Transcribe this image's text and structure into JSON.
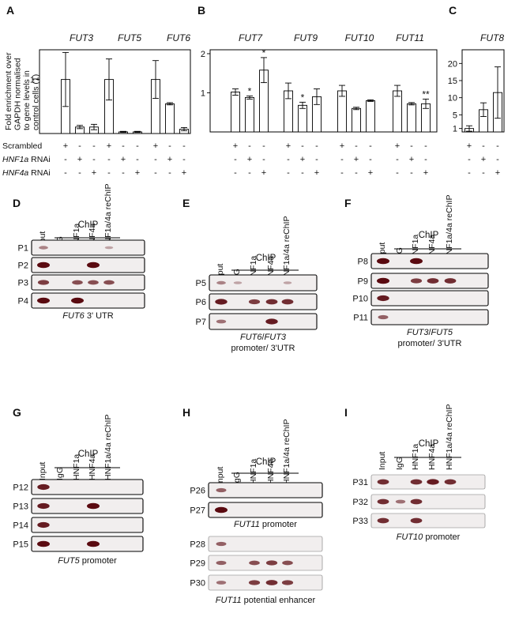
{
  "panel_letters": [
    "A",
    "B",
    "C",
    "D",
    "E",
    "F",
    "G",
    "H",
    "I"
  ],
  "y_axis_label": [
    "Fold enrichment over",
    "GAPDH normalised",
    "to gene levels in",
    "control cells (1)"
  ],
  "conditions": [
    "Scrambled",
    "HNF1a RNAi",
    "HNF4a RNAi"
  ],
  "sign_pattern": [
    [
      "+",
      "-",
      "-"
    ],
    [
      "-",
      "+",
      "-"
    ],
    [
      "-",
      "-",
      "+"
    ]
  ],
  "chart_data": [
    {
      "panel": "A",
      "type": "bar",
      "ylabel": "Fold enrichment over GAPDH normalised to gene levels in control cells (1)",
      "yticks": [
        "1"
      ],
      "ylim": [
        0,
        1.55
      ],
      "series": [
        {
          "name": "FUT3",
          "values": [
            1.0,
            0.12,
            0.12
          ],
          "errors": [
            0.5,
            0.03,
            0.05
          ]
        },
        {
          "name": "FUT5",
          "values": [
            1.0,
            0.03,
            0.03
          ],
          "errors": [
            0.38,
            0.01,
            0.01
          ]
        },
        {
          "name": "FUT6",
          "values": [
            1.0,
            0.55,
            0.08
          ],
          "errors": [
            0.35,
            0.02,
            0.03
          ]
        }
      ]
    },
    {
      "panel": "B",
      "type": "bar",
      "yticks": [
        "1",
        "2"
      ],
      "ylim": [
        0,
        2.1
      ],
      "series": [
        {
          "name": "FUT7",
          "values": [
            1.02,
            0.88,
            1.58
          ],
          "errors": [
            0.08,
            0.04,
            0.32
          ],
          "marks": [
            "",
            "*",
            "*"
          ]
        },
        {
          "name": "FUT9",
          "values": [
            1.05,
            0.68,
            0.9
          ],
          "errors": [
            0.2,
            0.08,
            0.2
          ],
          "marks": [
            "",
            "*",
            ""
          ]
        },
        {
          "name": "FUT10",
          "values": [
            1.05,
            0.6,
            0.8
          ],
          "errors": [
            0.14,
            0.03,
            0.02
          ],
          "marks": [
            "",
            "",
            ""
          ]
        },
        {
          "name": "FUT11",
          "values": [
            1.05,
            0.72,
            0.72
          ],
          "errors": [
            0.14,
            0.03,
            0.12
          ],
          "marks": [
            "",
            "",
            "**"
          ]
        }
      ]
    },
    {
      "panel": "C",
      "type": "bar",
      "yticks": [
        "1",
        "5",
        "10",
        "15",
        "20"
      ],
      "ylim": [
        0,
        24
      ],
      "series": [
        {
          "name": "FUT8",
          "values": [
            1.0,
            6.5,
            11.5
          ],
          "errors": [
            0.8,
            2.0,
            7.5
          ]
        }
      ]
    }
  ],
  "chip_header": "ChIP",
  "lane_labels": [
    "Input",
    "IgG",
    "HNF1a",
    "HNF4a",
    "HNF1a/4a reChIP"
  ],
  "gels": [
    {
      "panel": "D",
      "rows": [
        {
          "label": "P1",
          "bands": [
            0.3,
            0,
            0,
            0,
            0.1
          ]
        },
        {
          "label": "P2",
          "bands": [
            1,
            0,
            0,
            1,
            0
          ]
        },
        {
          "label": "P3",
          "bands": [
            0.7,
            0,
            0.6,
            0.6,
            0.6
          ]
        },
        {
          "label": "P4",
          "bands": [
            1,
            0,
            1,
            0,
            0
          ]
        }
      ],
      "caption": [
        {
          "text": "FUT6",
          "italic": true
        },
        {
          "text": " 3' UTR",
          "italic": false
        }
      ],
      "caption2": ""
    },
    {
      "panel": "E",
      "rows": [
        {
          "label": "P5",
          "bands": [
            0.3,
            0.1,
            0,
            0,
            0.1
          ]
        },
        {
          "label": "P6",
          "bands": [
            0.9,
            0,
            0.7,
            0.8,
            0.8
          ]
        },
        {
          "label": "P7",
          "bands": [
            0.4,
            0,
            0,
            0.9,
            0
          ]
        }
      ],
      "caption": [
        {
          "text": "FUT6",
          "italic": true
        },
        {
          "text": "/",
          "italic": false
        },
        {
          "text": "FUT3",
          "italic": true
        }
      ],
      "caption2": "promoter/ 3'UTR"
    },
    {
      "panel": "F",
      "rows": [
        {
          "label": "P8",
          "bands": [
            1,
            0,
            1,
            0,
            0
          ]
        },
        {
          "label": "P9",
          "bands": [
            1,
            0,
            0.7,
            0.8,
            0.8
          ]
        },
        {
          "label": "P10",
          "bands": [
            0.9,
            0,
            0,
            0,
            0
          ]
        },
        {
          "label": "P11",
          "bands": [
            0.5,
            0,
            0,
            0,
            0
          ]
        }
      ],
      "caption": [
        {
          "text": "FUT3",
          "italic": true
        },
        {
          "text": "/",
          "italic": false
        },
        {
          "text": "FUT5",
          "italic": true
        }
      ],
      "caption2": "promoter/ 3'UTR"
    },
    {
      "panel": "G",
      "rows": [
        {
          "label": "P12",
          "bands": [
            0.9,
            0,
            0,
            0,
            0
          ]
        },
        {
          "label": "P13",
          "bands": [
            0.9,
            0,
            0,
            1,
            0
          ]
        },
        {
          "label": "P14",
          "bands": [
            0.9,
            0,
            0,
            0,
            0
          ]
        },
        {
          "label": "P15",
          "bands": [
            1,
            0,
            0,
            1,
            0
          ]
        }
      ],
      "caption": [
        {
          "text": "FUT5",
          "italic": true
        },
        {
          "text": "  promoter",
          "italic": false
        }
      ],
      "caption2": ""
    },
    {
      "panel": "H",
      "rows": [
        {
          "label": "P26",
          "bands": [
            0.5,
            0,
            0,
            0,
            0
          ]
        },
        {
          "label": "P27",
          "bands": [
            1,
            0,
            0,
            0,
            0
          ]
        },
        {
          "label": "P28",
          "bands": [
            0.5,
            0,
            0,
            0,
            0
          ]
        },
        {
          "label": "P29",
          "bands": [
            0.5,
            0,
            0.6,
            0.7,
            0.6
          ]
        },
        {
          "label": "P30",
          "bands": [
            0.4,
            0,
            0.7,
            0.8,
            0.7
          ]
        }
      ],
      "caption": [
        {
          "text": "FUT11",
          "italic": true
        },
        {
          "text": " promoter",
          "italic": false
        }
      ],
      "caption2": "",
      "caption_b": [
        {
          "text": "FUT11",
          "italic": true
        },
        {
          "text": "  potential enhancer",
          "italic": false
        }
      ]
    },
    {
      "panel": "I",
      "rows": [
        {
          "label": "P31",
          "bands": [
            0.8,
            0,
            0.8,
            0.9,
            0.8
          ]
        },
        {
          "label": "P32",
          "bands": [
            0.8,
            0.4,
            0.8,
            0,
            0
          ]
        },
        {
          "label": "P33",
          "bands": [
            0.8,
            0,
            0.8,
            0,
            0
          ]
        }
      ],
      "caption": [
        {
          "text": "FUT10",
          "italic": true
        },
        {
          "text": " promoter",
          "italic": false
        }
      ],
      "caption2": ""
    }
  ],
  "colors": {
    "band": "#5a0a10",
    "gel_bg": "#f1eeee",
    "line": "#000000"
  }
}
